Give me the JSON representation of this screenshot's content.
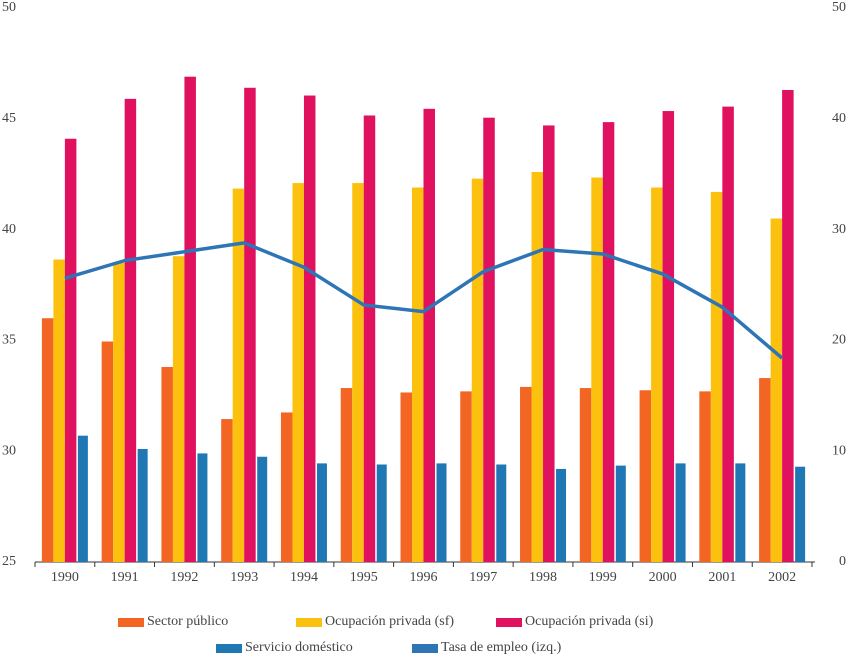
{
  "chart_data": {
    "type": "bar",
    "categories": [
      "1990",
      "1991",
      "1992",
      "1993",
      "1994",
      "1995",
      "1996",
      "1997",
      "1998",
      "1999",
      "2000",
      "2001",
      "2002"
    ],
    "series": [
      {
        "name": "Sector público",
        "color": "#f26522",
        "axis": "y2",
        "type": "bar",
        "values": [
          22.0,
          19.9,
          17.6,
          12.9,
          13.5,
          15.7,
          15.3,
          15.4,
          15.8,
          15.7,
          15.5,
          15.4,
          16.6
        ]
      },
      {
        "name": "Ocupación privada (sf)",
        "color": "#fcc10f",
        "axis": "y2",
        "type": "bar",
        "values": [
          27.3,
          27.0,
          27.6,
          33.7,
          34.2,
          34.2,
          33.8,
          34.6,
          35.2,
          34.7,
          33.8,
          33.4,
          31.0
        ]
      },
      {
        "name": "Ocupación privada (si)",
        "color": "#e0115f",
        "axis": "y2",
        "type": "bar",
        "values": [
          38.2,
          41.8,
          43.8,
          42.8,
          42.1,
          40.3,
          40.9,
          40.1,
          39.4,
          39.7,
          40.7,
          41.1,
          42.6
        ]
      },
      {
        "name": "Servicio doméstico",
        "color": "#1f78b4",
        "axis": "y2",
        "type": "bar",
        "values": [
          11.4,
          10.2,
          9.8,
          9.5,
          8.9,
          8.8,
          8.9,
          8.8,
          8.4,
          8.7,
          8.9,
          8.9,
          8.6
        ]
      },
      {
        "name": "Tasa de empleo (izq.)",
        "color": "#2e75b6",
        "axis": "y",
        "type": "line",
        "values": [
          37.8,
          38.6,
          39.0,
          39.4,
          38.3,
          36.6,
          36.3,
          38.1,
          39.1,
          38.9,
          38.0,
          36.5,
          34.2
        ]
      }
    ],
    "ylim": [
      25,
      50
    ],
    "yticks": [
      25,
      30,
      35,
      40,
      45,
      50
    ],
    "y2lim": [
      0,
      50
    ],
    "y2ticks": [
      0,
      10,
      20,
      30,
      40,
      50
    ],
    "grid": false,
    "legend": "bottom"
  }
}
